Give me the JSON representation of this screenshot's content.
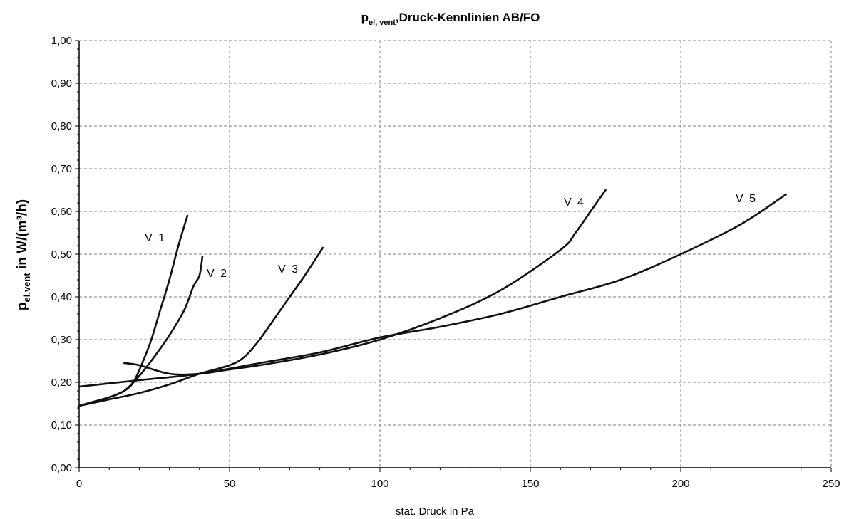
{
  "chart_data": {
    "type": "line",
    "title": {
      "main": "p",
      "sub": "el, vent",
      "rest": ",Druck-Kennlinien AB/FO"
    },
    "xlabel": "stat. Druck in Pa",
    "ylabel": {
      "main": "p",
      "sub": "el,vent",
      "rest": " in W/(m³/h)"
    },
    "xlim": [
      0,
      250
    ],
    "ylim": [
      0,
      1.0
    ],
    "x_ticks": [
      0,
      50,
      100,
      150,
      200,
      250
    ],
    "x_tick_labels": [
      "0",
      "50",
      "100",
      "150",
      "200",
      "250"
    ],
    "y_ticks": [
      0,
      0.1,
      0.2,
      0.3,
      0.4,
      0.5,
      0.6,
      0.7,
      0.8,
      0.9,
      1.0
    ],
    "y_tick_labels": [
      "0,00",
      "0,10",
      "0,20",
      "0,30",
      "0,40",
      "0,50",
      "0,60",
      "0,70",
      "0,80",
      "0,90",
      "1,00"
    ],
    "grid": true,
    "line_color": "#111111",
    "series": [
      {
        "name": "V 1",
        "x": [
          0,
          5,
          10,
          15,
          18,
          21,
          24,
          27,
          30,
          33,
          36
        ],
        "y": [
          0.145,
          0.155,
          0.165,
          0.18,
          0.2,
          0.245,
          0.3,
          0.37,
          0.44,
          0.52,
          0.59
        ]
      },
      {
        "name": "V 2",
        "x": [
          0,
          5,
          10,
          15,
          20,
          25,
          30,
          35,
          38,
          40,
          41
        ],
        "y": [
          0.145,
          0.155,
          0.165,
          0.18,
          0.215,
          0.26,
          0.31,
          0.37,
          0.425,
          0.45,
          0.495
        ]
      },
      {
        "name": "V 3",
        "x": [
          0,
          10,
          20,
          30,
          40,
          50,
          55,
          60,
          65,
          70,
          75,
          81
        ],
        "y": [
          0.145,
          0.16,
          0.175,
          0.195,
          0.22,
          0.24,
          0.26,
          0.3,
          0.35,
          0.4,
          0.45,
          0.515
        ]
      },
      {
        "name": "V 4",
        "x": [
          15,
          20,
          30,
          40,
          50,
          60,
          80,
          100,
          120,
          140,
          160,
          165,
          170,
          175
        ],
        "y": [
          0.245,
          0.24,
          0.22,
          0.22,
          0.23,
          0.24,
          0.265,
          0.3,
          0.35,
          0.415,
          0.51,
          0.55,
          0.6,
          0.65
        ]
      },
      {
        "name": "V 5",
        "x": [
          0,
          20,
          40,
          60,
          80,
          100,
          120,
          140,
          160,
          180,
          200,
          220,
          235
        ],
        "y": [
          0.19,
          0.205,
          0.22,
          0.245,
          0.27,
          0.305,
          0.33,
          0.36,
          0.4,
          0.44,
          0.5,
          0.57,
          0.64
        ]
      }
    ]
  }
}
